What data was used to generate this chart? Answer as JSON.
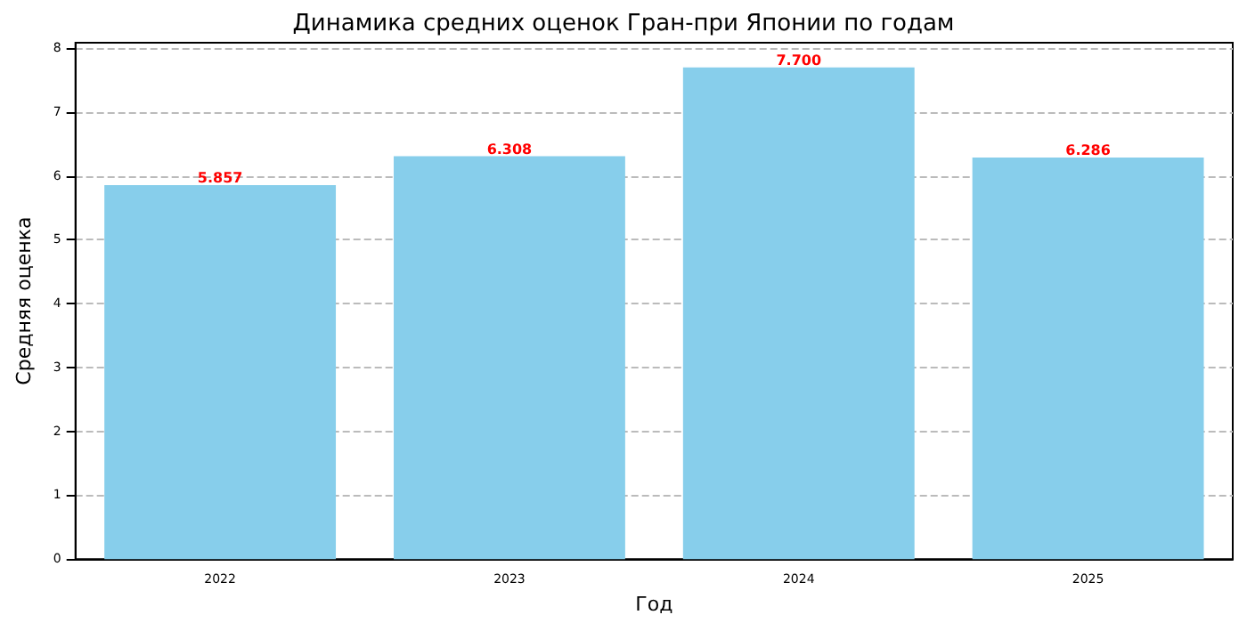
{
  "chart_data": {
    "type": "bar",
    "title": "Динамика средних оценок Гран-при Японии по годам",
    "xlabel": "Год",
    "ylabel": "Средняя оценка",
    "categories": [
      "2022",
      "2023",
      "2024",
      "2025"
    ],
    "values": [
      5.857,
      6.308,
      7.7,
      6.286
    ],
    "value_labels": [
      "5.857",
      "6.308",
      "7.700",
      "6.286"
    ],
    "color": "#87ceeb",
    "ylim": [
      0,
      8.085
    ],
    "yticks": [
      0,
      1,
      2,
      3,
      4,
      5,
      6,
      7,
      8
    ],
    "grid": "y"
  }
}
